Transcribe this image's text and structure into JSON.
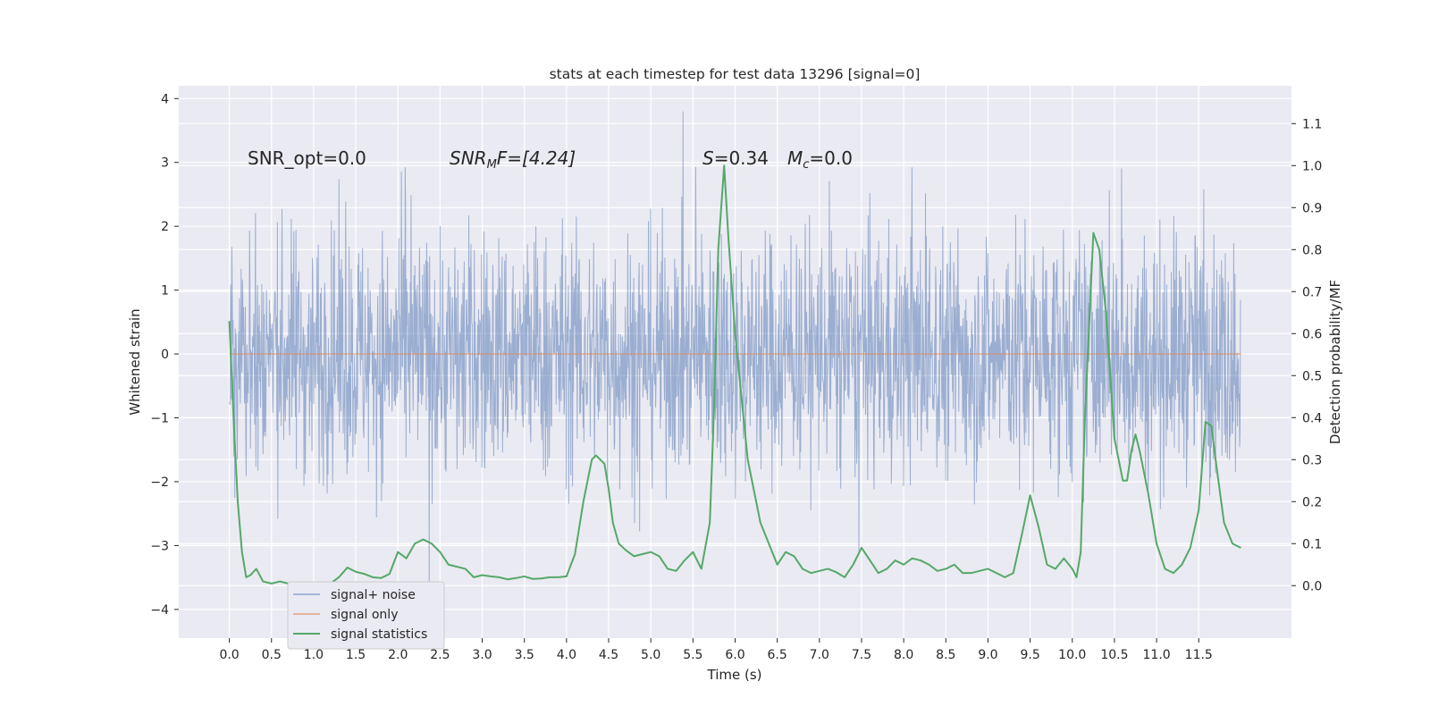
{
  "chart_data": {
    "type": "line",
    "title": "stats at each timestep for test data 13296 [signal=0]",
    "xlabel": "Time (s)",
    "ylabel": "Whitened strain",
    "y2label": "Detection probability/MF",
    "xlim": [
      -0.6,
      12.6
    ],
    "ylim": [
      -4.45,
      4.2
    ],
    "y2lim": [
      -0.125,
      1.19
    ],
    "x_ticks": [
      0.0,
      0.5,
      1.0,
      1.5,
      2.0,
      2.5,
      3.0,
      3.5,
      4.0,
      4.5,
      5.0,
      5.5,
      6.0,
      6.5,
      7.0,
      7.5,
      8.0,
      8.5,
      9.0,
      9.5,
      10.0,
      10.5,
      11.0,
      11.5
    ],
    "x_tick_labels": [
      "0.0",
      "0.5",
      "1.0",
      "1.5",
      "2.0",
      "2.5",
      "3.0",
      "3.5",
      "4.0",
      "4.5",
      "5.0",
      "5.5",
      "6.0",
      "6.5",
      "7.0",
      "7.5",
      "8.0",
      "8.5",
      "9.0",
      "9.5",
      "10.0",
      "10.5",
      "11.0",
      "11.5"
    ],
    "y_ticks": [
      -4,
      -3,
      -2,
      -1,
      0,
      1,
      2,
      3,
      4
    ],
    "y_tick_labels": [
      "−4",
      "−3",
      "−2",
      "−1",
      "0",
      "1",
      "2",
      "3",
      "4"
    ],
    "y2_ticks": [
      0.0,
      0.1,
      0.2,
      0.3,
      0.4,
      0.5,
      0.6,
      0.7,
      0.8,
      0.9,
      1.0,
      1.1
    ],
    "y2_tick_labels": [
      "0.0",
      "0.1",
      "0.2",
      "0.3",
      "0.4",
      "0.5",
      "0.6",
      "0.7",
      "0.8",
      "0.9",
      "1.0",
      "1.1"
    ],
    "grid": true,
    "legend_position": "lower-left",
    "series": [
      {
        "name": "signal+ noise",
        "axis": "left",
        "color": "#4c72b0",
        "x_range": [
          0.0,
          12.0
        ],
        "value_range": [
          -3.75,
          3.8
        ],
        "note_values": "dense noisy whitened strain; plotted as continuous oscillation filling roughly -1.5..1.7 with spikes to about ±3.5"
      },
      {
        "name": "signal only",
        "axis": "left",
        "color": "#dd8452",
        "x": [
          0.0,
          12.0
        ],
        "values": [
          0.0,
          0.0
        ]
      },
      {
        "name": "signal statistics",
        "axis": "right",
        "color": "#55a868",
        "x": [
          0.0,
          0.05,
          0.1,
          0.15,
          0.2,
          0.25,
          0.32,
          0.4,
          0.5,
          0.6,
          0.7,
          0.8,
          0.9,
          1.0,
          1.1,
          1.2,
          1.3,
          1.4,
          1.5,
          1.6,
          1.7,
          1.8,
          1.9,
          2.0,
          2.1,
          2.2,
          2.3,
          2.4,
          2.5,
          2.6,
          2.7,
          2.8,
          2.9,
          3.0,
          3.1,
          3.2,
          3.3,
          3.4,
          3.5,
          3.6,
          3.7,
          3.8,
          3.9,
          4.0,
          4.1,
          4.2,
          4.3,
          4.35,
          4.45,
          4.5,
          4.55,
          4.62,
          4.7,
          4.8,
          4.9,
          5.0,
          5.1,
          5.2,
          5.3,
          5.4,
          5.5,
          5.6,
          5.7,
          5.75,
          5.8,
          5.87,
          5.92,
          6.0,
          6.15,
          6.3,
          6.4,
          6.5,
          6.6,
          6.7,
          6.8,
          6.9,
          7.0,
          7.1,
          7.2,
          7.3,
          7.4,
          7.5,
          7.6,
          7.7,
          7.8,
          7.9,
          8.0,
          8.1,
          8.2,
          8.3,
          8.4,
          8.5,
          8.6,
          8.7,
          8.8,
          8.9,
          9.0,
          9.1,
          9.2,
          9.3,
          9.4,
          9.5,
          9.6,
          9.7,
          9.8,
          9.9,
          10.0,
          10.05,
          10.1,
          10.15,
          10.25,
          10.32,
          10.4,
          10.5,
          10.6,
          10.65,
          10.7,
          10.75,
          10.8,
          10.9,
          11.0,
          11.1,
          11.2,
          11.3,
          11.4,
          11.5,
          11.58,
          11.65,
          11.7,
          11.8,
          11.9,
          12.0
        ],
        "values": [
          0.63,
          0.4,
          0.2,
          0.08,
          0.02,
          0.025,
          0.04,
          0.01,
          0.005,
          0.01,
          0.005,
          0.003,
          0.003,
          0.005,
          0.006,
          0.005,
          0.02,
          0.043,
          0.033,
          0.028,
          0.02,
          0.018,
          0.028,
          0.08,
          0.065,
          0.1,
          0.11,
          0.1,
          0.08,
          0.05,
          0.045,
          0.04,
          0.02,
          0.025,
          0.022,
          0.02,
          0.015,
          0.018,
          0.022,
          0.016,
          0.017,
          0.02,
          0.02,
          0.022,
          0.075,
          0.2,
          0.3,
          0.31,
          0.29,
          0.23,
          0.15,
          0.1,
          0.085,
          0.07,
          0.075,
          0.08,
          0.07,
          0.04,
          0.035,
          0.06,
          0.08,
          0.04,
          0.15,
          0.42,
          0.8,
          1.0,
          0.83,
          0.6,
          0.3,
          0.15,
          0.1,
          0.05,
          0.08,
          0.07,
          0.04,
          0.03,
          0.035,
          0.04,
          0.032,
          0.02,
          0.05,
          0.09,
          0.06,
          0.03,
          0.04,
          0.06,
          0.05,
          0.065,
          0.06,
          0.05,
          0.035,
          0.04,
          0.05,
          0.03,
          0.03,
          0.035,
          0.04,
          0.03,
          0.02,
          0.03,
          0.12,
          0.215,
          0.14,
          0.05,
          0.04,
          0.065,
          0.04,
          0.02,
          0.08,
          0.4,
          0.84,
          0.8,
          0.65,
          0.35,
          0.25,
          0.25,
          0.32,
          0.36,
          0.32,
          0.22,
          0.1,
          0.04,
          0.03,
          0.05,
          0.09,
          0.18,
          0.39,
          0.38,
          0.3,
          0.15,
          0.1,
          0.09
        ]
      }
    ],
    "annotations": {
      "snr_opt": "SNR_opt=0.0",
      "snr_mf_base": "SNR",
      "snr_mf_sub": "M",
      "snr_mf_after": "F=[4.24]",
      "s_var": "S",
      "s_val": "=0.34",
      "mc_var": "M",
      "mc_sub": "c",
      "mc_val": "=0.0"
    },
    "colors": {
      "plot_background": "#eaeaf2",
      "grid": "#ffffff",
      "axis_text": "#262626"
    }
  }
}
